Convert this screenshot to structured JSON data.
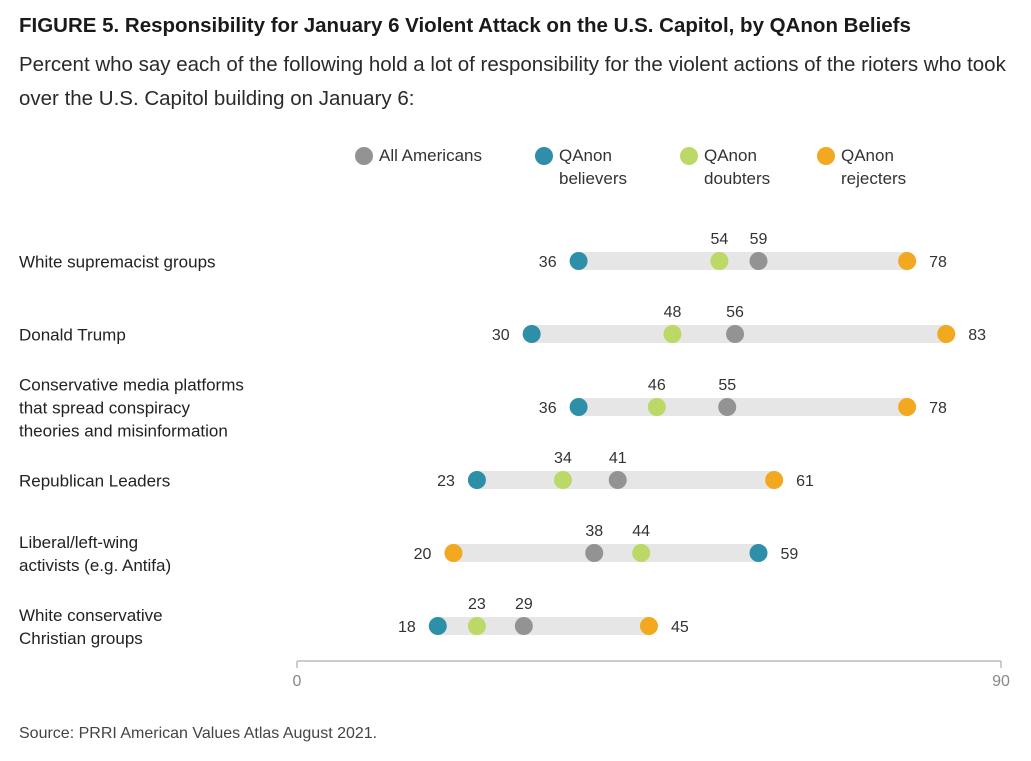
{
  "title": "FIGURE 5.  Responsibility for January 6 Violent Attack on the U.S. Capitol, by QAnon Beliefs",
  "subtitle": "Percent who say each of the following hold a lot of responsibility for the violent actions of the rioters who took over the U.S. Capitol building on January 6:",
  "source": "Source: PRRI American Values Atlas August 2021.",
  "colors": {
    "all_americans": "#939393",
    "believers": "#2e8fa8",
    "doubters": "#bcd867",
    "rejecters": "#f2a81f",
    "track": "#e6e6e6",
    "axis": "#cccccc"
  },
  "chart_data": {
    "type": "dot-range",
    "xlim": [
      0,
      90
    ],
    "xticks": [
      "0",
      "90"
    ],
    "series": [
      {
        "name": "All Americans",
        "color": "#939393",
        "values": [
          59,
          56,
          55,
          41,
          38,
          29
        ]
      },
      {
        "name": "QAnon\nbelievers",
        "color": "#2e8fa8",
        "values": [
          36,
          30,
          36,
          23,
          59,
          18
        ]
      },
      {
        "name": "QAnon\ndoubters",
        "color": "#bcd867",
        "values": [
          54,
          48,
          46,
          34,
          44,
          23
        ]
      },
      {
        "name": "QAnon\nrejecters",
        "color": "#f2a81f",
        "values": [
          78,
          83,
          78,
          61,
          20,
          45
        ]
      }
    ],
    "categories": [
      "White supremacist groups",
      "Donald Trump",
      "Conservative media platforms\nthat spread conspiracy\ntheories and misinformation",
      "Republican Leaders",
      "Liberal/left-wing\nactivists (e.g. Antifa)",
      "White conservative\nChristian groups"
    ]
  }
}
